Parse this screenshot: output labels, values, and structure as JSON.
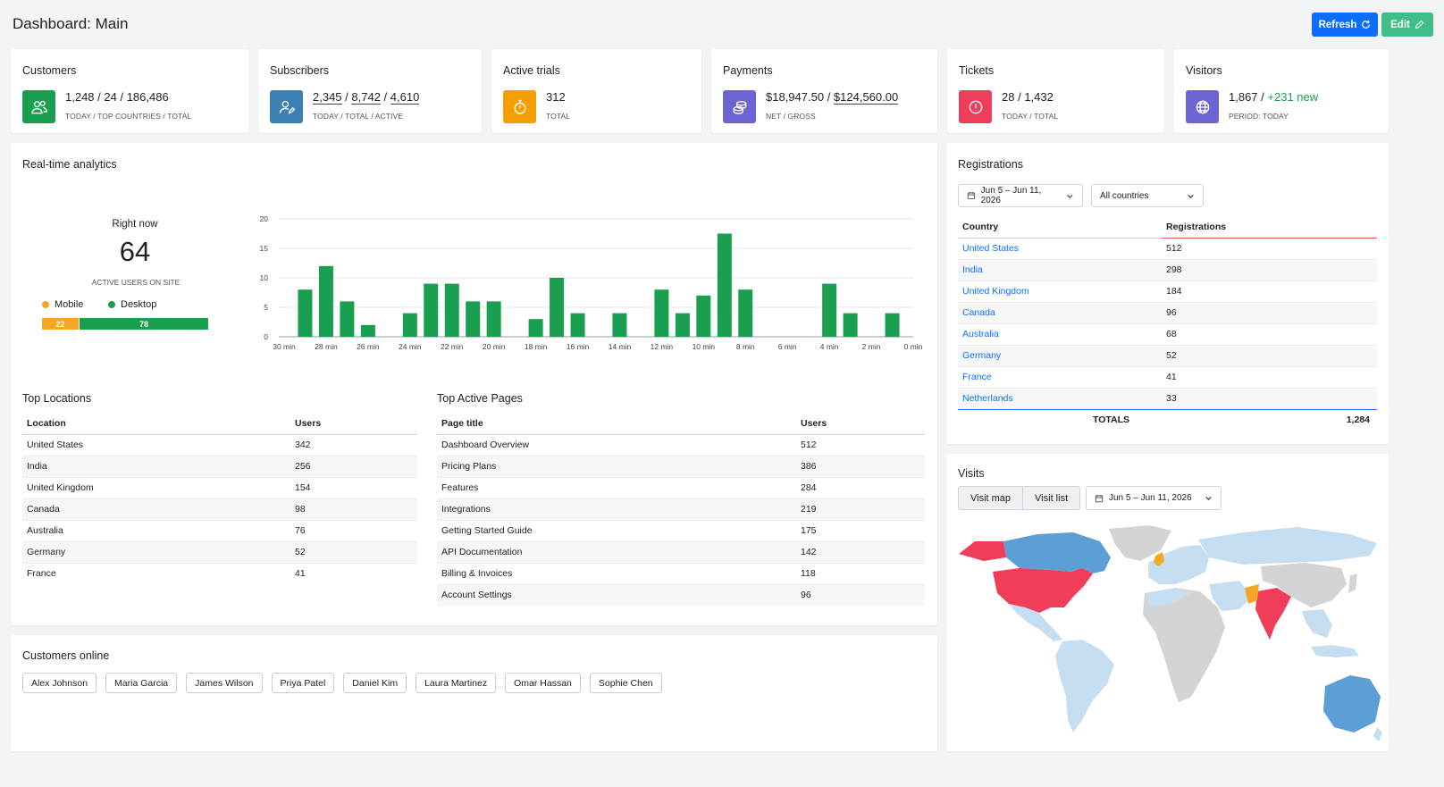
{
  "header": {
    "title": "Dashboard: Main",
    "refresh_label": "Refresh",
    "edit_label": "Edit"
  },
  "stats": [
    {
      "title": "Customers",
      "value_parts": [
        "1,248",
        " / ",
        "24",
        " / ",
        "186,486"
      ],
      "sub": "TODAY / TOP COUNTRIES / TOTAL",
      "icon": "users-icon",
      "color": "#1a9e4f"
    },
    {
      "title": "Subscribers",
      "value_parts": [
        "2,345",
        " / ",
        "8,742",
        " / ",
        "4,610"
      ],
      "sub": "TODAY / TOTAL / ACTIVE",
      "icon": "user-edit-icon",
      "color": "#3b7fb3"
    },
    {
      "title": "Active trials",
      "value": "312",
      "sub": "TOTAL",
      "icon": "stopwatch-icon",
      "color": "#f59f00"
    },
    {
      "title": "Payments",
      "value_parts": [
        "$18,947.50",
        " / ",
        "$124,560.00"
      ],
      "sub": "NET / GROSS",
      "icon": "coins-icon",
      "color": "#6c63d4"
    },
    {
      "title": "Tickets",
      "value_parts": [
        "28",
        " / ",
        "1,432"
      ],
      "sub": "TODAY / TOTAL",
      "icon": "alert-circle-icon",
      "color": "#f03e5a"
    },
    {
      "title": "Visitors",
      "value": "1,867",
      "value_sep": " / ",
      "value_extra": "+231 new",
      "sub": "PERIOD: TODAY",
      "icon": "globe-icon",
      "color": "#6c63d4"
    }
  ],
  "realtime": {
    "title": "Real-time analytics",
    "right_now_label": "Right now",
    "right_now_value": "64",
    "right_now_sub": "ACTIVE USERS ON SITE",
    "legend_mobile": "Mobile",
    "legend_desktop": "Desktop",
    "mobile_value": "22",
    "desktop_value": "78",
    "mobile_color": "#f5a623",
    "desktop_color": "#1a9e4f"
  },
  "chart_data": {
    "type": "bar",
    "x": [
      30,
      29,
      28,
      27,
      26,
      25,
      24,
      23,
      22,
      21,
      20,
      19,
      18,
      17,
      16,
      15,
      14,
      13,
      12,
      11,
      10,
      9,
      8,
      7,
      6,
      5,
      4,
      3,
      2,
      1,
      0
    ],
    "values": [
      0,
      8,
      12,
      6,
      2,
      0,
      4,
      9,
      9,
      6,
      6,
      0,
      3,
      10,
      4,
      0,
      4,
      0,
      8,
      4,
      7,
      17.5,
      8,
      0,
      0,
      0,
      9,
      4,
      0,
      4,
      0
    ],
    "tick_labels": [
      "30 min",
      "28 min",
      "26 min",
      "24 min",
      "22 min",
      "20 min",
      "18 min",
      "16 min",
      "14 min",
      "12 min",
      "10 min",
      "8 min",
      "6 min",
      "4 min",
      "2 min",
      "0 min"
    ],
    "yticks": [
      0,
      5,
      10,
      15,
      20
    ],
    "ylim": [
      0,
      20
    ],
    "bar_color": "#1a9e4f",
    "grid": true
  },
  "top_locations": {
    "title": "Top Locations",
    "headers": [
      "Location",
      "Users"
    ],
    "rows": [
      [
        "United States",
        "342"
      ],
      [
        "India",
        "256"
      ],
      [
        "United Kingdom",
        "154"
      ],
      [
        "Canada",
        "98"
      ],
      [
        "Australia",
        "76"
      ],
      [
        "Germany",
        "52"
      ],
      [
        "France",
        "41"
      ]
    ]
  },
  "top_pages": {
    "title": "Top Active Pages",
    "headers": [
      "Page title",
      "Users"
    ],
    "rows": [
      [
        "Dashboard Overview",
        "512"
      ],
      [
        "Pricing Plans",
        "386"
      ],
      [
        "Features",
        "284"
      ],
      [
        "Integrations",
        "219"
      ],
      [
        "Getting Started Guide",
        "175"
      ],
      [
        "API Documentation",
        "142"
      ],
      [
        "Billing & Invoices",
        "118"
      ],
      [
        "Account Settings",
        "96"
      ]
    ]
  },
  "customers_online": {
    "title": "Customers online",
    "names": [
      "Alex Johnson",
      "Maria Garcia",
      "James Wilson",
      "Priya Patel",
      "Daniel Kim",
      "Laura Martinez",
      "Omar Hassan",
      "Sophie Chen"
    ]
  },
  "registrations": {
    "title": "Registrations",
    "date_range": "Jun 5 – Jun 11, 2026",
    "country_filter": "All countries",
    "headers": [
      "Country",
      "Registrations"
    ],
    "rows": [
      [
        "United States",
        "512"
      ],
      [
        "India",
        "298"
      ],
      [
        "United Kingdom",
        "184"
      ],
      [
        "Canada",
        "96"
      ],
      [
        "Australia",
        "68"
      ],
      [
        "Germany",
        "52"
      ],
      [
        "France",
        "41"
      ],
      [
        "Netherlands",
        "33"
      ]
    ],
    "totals_label": "TOTALS",
    "totals_value": "1,284"
  },
  "visits": {
    "title": "Visits",
    "tab_map": "Visit map",
    "tab_list": "Visit list",
    "date_range": "Jun 5 – Jun 11, 2026",
    "colors": {
      "high": "#f03e5a",
      "medium": "#5b9fd6",
      "low": "#c6def1",
      "none": "#d4d4d4",
      "orange": "#f5a623"
    }
  }
}
